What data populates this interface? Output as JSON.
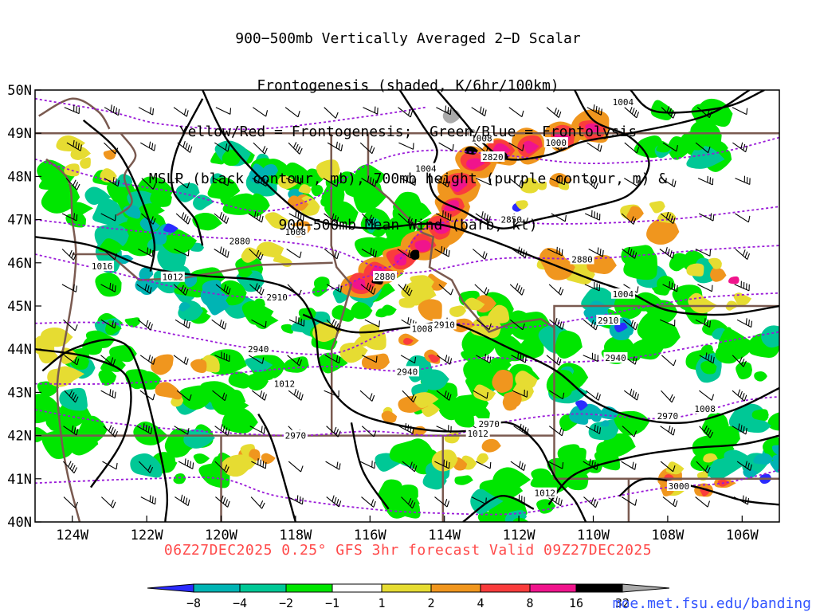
{
  "title_lines": [
    "900−500mb Vertically Averaged 2−D Scalar",
    "Frontogenesis (shaded, K/6hr/100km)",
    "Yellow/Red = Frontogenesis;  Green/Blue = Frontolysis",
    "MSLP (black contour, mb), 700mb height (purple contour, m) &",
    "900−500mb Mean Wind (barb, kt)"
  ],
  "footer": "06Z27DEC2025 0.25° GFS 3hr forecast Valid 09Z27DEC2025",
  "credit": "moe.met.fsu.edu/banding",
  "map": {
    "lon_range": [
      -125,
      -105
    ],
    "lat_range": [
      40,
      50
    ],
    "lon_ticks": [
      "124W",
      "122W",
      "120W",
      "118W",
      "116W",
      "114W",
      "112W",
      "110W",
      "108W",
      "106W"
    ],
    "lat_ticks": [
      "50N",
      "49N",
      "48N",
      "47N",
      "46N",
      "45N",
      "44N",
      "43N",
      "42N",
      "41N",
      "40N"
    ]
  },
  "colorbar": {
    "labels": [
      "−8",
      "−4",
      "−2",
      "−1",
      "1",
      "2",
      "4",
      "8",
      "16",
      "32"
    ],
    "colors": [
      "#2b2bff",
      "#00b4b4",
      "#00c896",
      "#00e600",
      "#ffffff",
      "#e6dc32",
      "#f0961e",
      "#fa3c3c",
      "#f0148c",
      "#000000",
      "#aaaaaa"
    ]
  },
  "mslp_labels": [
    {
      "text": "1008",
      "lon": -113.0,
      "lat": 48.88
    },
    {
      "text": "1004",
      "lon": -114.5,
      "lat": 48.18
    },
    {
      "text": "1004",
      "lon": -109.2,
      "lat": 49.72
    },
    {
      "text": "1000",
      "lon": -111.0,
      "lat": 48.78
    },
    {
      "text": "1008",
      "lon": -118.0,
      "lat": 46.72
    },
    {
      "text": "1016",
      "lon": -123.2,
      "lat": 45.92
    },
    {
      "text": "1012",
      "lon": -121.3,
      "lat": 45.67
    },
    {
      "text": "1004",
      "lon": -109.2,
      "lat": 45.28
    },
    {
      "text": "1008",
      "lon": -114.6,
      "lat": 44.47
    },
    {
      "text": "1012",
      "lon": -118.3,
      "lat": 43.2
    },
    {
      "text": "1012",
      "lon": -113.1,
      "lat": 42.05
    },
    {
      "text": "1008",
      "lon": -107.0,
      "lat": 42.62
    },
    {
      "text": "1012",
      "lon": -111.3,
      "lat": 40.67
    }
  ],
  "hgt_labels": [
    {
      "text": "2820",
      "lon": -112.7,
      "lat": 48.45
    },
    {
      "text": "2850",
      "lon": -112.2,
      "lat": 47.0
    },
    {
      "text": "2880",
      "lon": -119.5,
      "lat": 46.5
    },
    {
      "text": "2880",
      "lon": -110.3,
      "lat": 46.08
    },
    {
      "text": "2880",
      "lon": -115.6,
      "lat": 45.68
    },
    {
      "text": "2910",
      "lon": -118.5,
      "lat": 45.2
    },
    {
      "text": "2910",
      "lon": -114.0,
      "lat": 44.57
    },
    {
      "text": "2910",
      "lon": -109.6,
      "lat": 44.67
    },
    {
      "text": "2940",
      "lon": -119.0,
      "lat": 44.0
    },
    {
      "text": "2940",
      "lon": -115.0,
      "lat": 43.48
    },
    {
      "text": "2940",
      "lon": -109.4,
      "lat": 43.8
    },
    {
      "text": "2970",
      "lon": -118.0,
      "lat": 42.0
    },
    {
      "text": "2970",
      "lon": -112.8,
      "lat": 42.27
    },
    {
      "text": "2970",
      "lon": -108.0,
      "lat": 42.45
    },
    {
      "text": "3000",
      "lon": -107.7,
      "lat": 40.83
    }
  ]
}
